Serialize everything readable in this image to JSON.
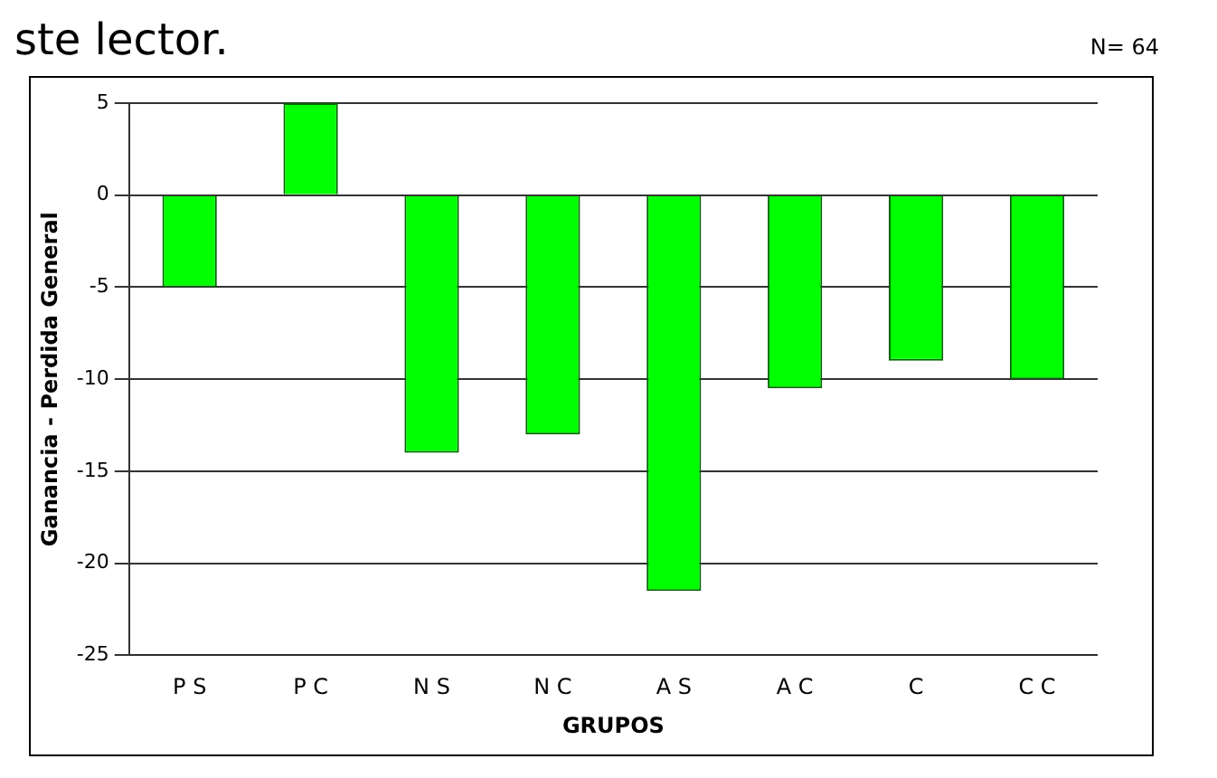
{
  "chart_data": {
    "type": "bar",
    "xlabel": "GRUPOS",
    "ylabel": "Ganancia - Perdida General",
    "annotations": [
      "ste lector.",
      "N= 64"
    ],
    "categories": [
      "P S",
      "P C",
      "N S",
      "N C",
      "A S",
      "A C",
      "C",
      "C C"
    ],
    "values": [
      -5,
      5,
      -14,
      -13,
      -21.5,
      -10.5,
      -9,
      -10
    ],
    "color": "#00ff00",
    "ylim": [
      -25,
      5
    ],
    "yticks": [
      -25,
      -20,
      -15,
      -10,
      -5,
      0,
      5
    ],
    "grid": "y",
    "legend": false
  }
}
